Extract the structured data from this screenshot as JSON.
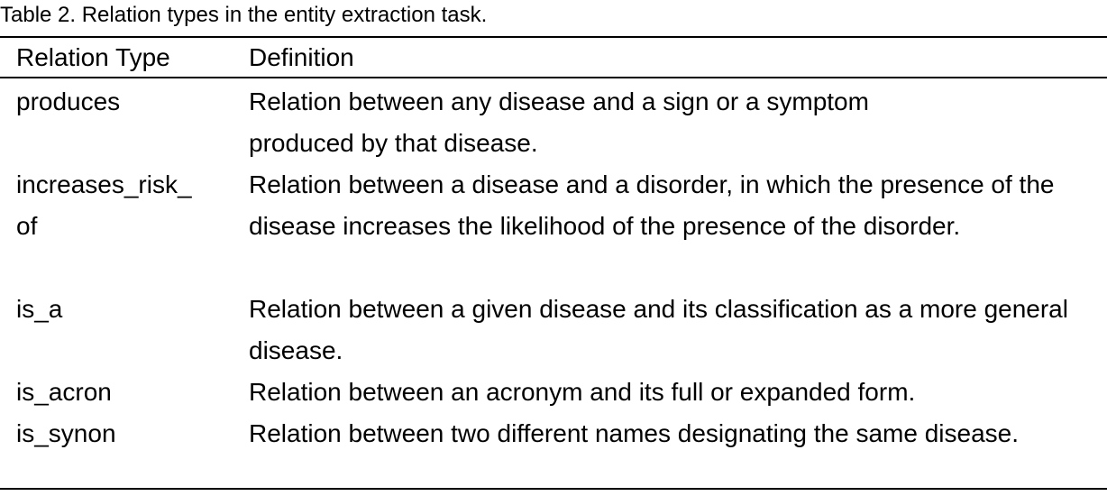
{
  "caption": "Table 2. Relation types in the entity extraction task.",
  "table": {
    "headers": {
      "type": "Relation Type",
      "definition": "Definition"
    },
    "rows": [
      {
        "type": "produces",
        "definition": "Relation between any disease and a sign or a symptom produced by that disease."
      },
      {
        "type": "increases_risk_\nof",
        "definition": "Relation between a disease and a disorder, in which the presence of the disease increases the likelihood of the presence of the disorder."
      },
      {
        "type": "is_a",
        "definition": "Relation between a given disease and its classification as a more general disease."
      },
      {
        "type": "is_acron",
        "definition": "Relation between an acronym and its full or expanded form."
      },
      {
        "type": "is_synon",
        "definition": "Relation between two different names designating the same disease."
      }
    ]
  }
}
